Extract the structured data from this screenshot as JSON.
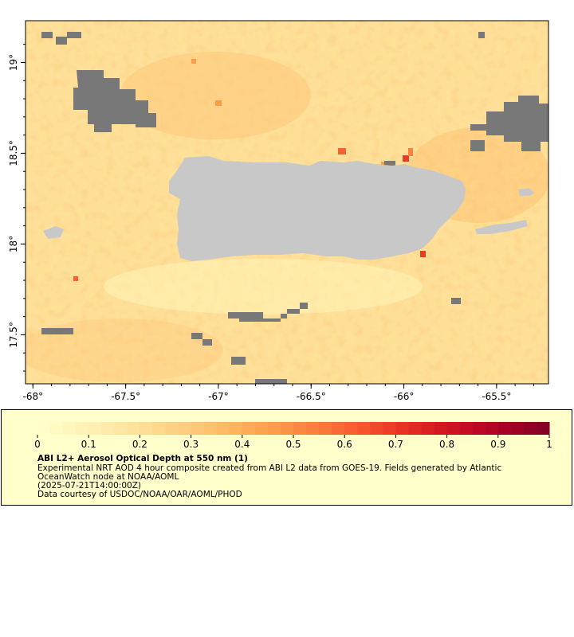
{
  "map": {
    "lon_ticks": [
      {
        "value": -68.0,
        "label": "-68°"
      },
      {
        "value": -67.5,
        "label": "-67.5°"
      },
      {
        "value": -67.0,
        "label": "-67°"
      },
      {
        "value": -66.5,
        "label": "-66.5°"
      },
      {
        "value": -66.0,
        "label": "-66°"
      },
      {
        "value": -65.5,
        "label": "-65.5°"
      }
    ],
    "lat_ticks": [
      {
        "value": 17.5,
        "label": "17.5°"
      },
      {
        "value": 18.0,
        "label": "18°"
      },
      {
        "value": 18.5,
        "label": "18.5°"
      },
      {
        "value": 19.0,
        "label": "19°"
      }
    ],
    "lon_range": [
      -68.04,
      -65.22
    ],
    "lat_range": [
      17.23,
      19.23
    ],
    "colors": {
      "land": "#c8c8c8",
      "no_data": "#787878",
      "background_aod": "#fee9a6"
    }
  },
  "colorbar": {
    "ticks": [
      "0",
      "0.1",
      "0.2",
      "0.3",
      "0.4",
      "0.5",
      "0.6",
      "0.7",
      "0.8",
      "0.9",
      "1"
    ],
    "min": 0,
    "max": 1,
    "colors": [
      "#ffffcc",
      "#fff4b8",
      "#fee9a6",
      "#fed98e",
      "#fec97a",
      "#feb45e",
      "#fd9c4a",
      "#fc803d",
      "#f85f32",
      "#ec3a26",
      "#d91d1f",
      "#c30a22",
      "#a50026",
      "#800026"
    ]
  },
  "legend": {
    "title": "ABI L2+ Aerosol Optical Depth at 550 nm (1)",
    "description_line1": "Experimental NRT AOD 4 hour composite created from ABI L2 data from GOES-19. Fields generated by Atlantic",
    "description_line2": "OceanWatch node at NOAA/AOML",
    "date": "(2025-07-21T14:00:00Z)",
    "credit": "Data courtesy of USDOC/NOAA/OAR/AOML/PHOD"
  }
}
